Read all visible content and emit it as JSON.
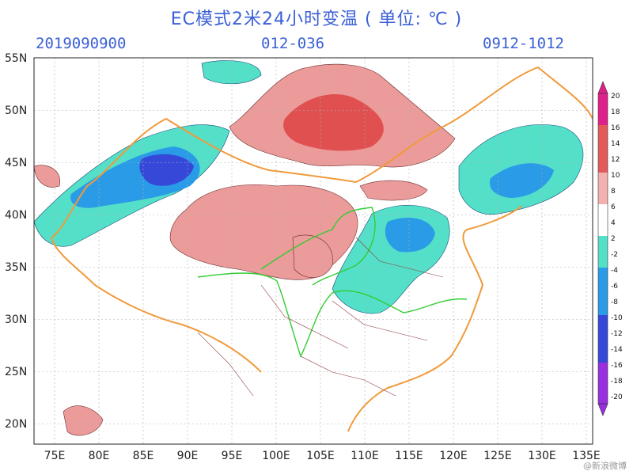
{
  "header": {
    "title": "EC模式2米24小时变温 ( 单位: ℃ )",
    "init_time": "2019090900",
    "lead": "012-036",
    "valid": "0912-1012"
  },
  "axes": {
    "lat_labels": [
      "55N",
      "50N",
      "45N",
      "40N",
      "35N",
      "30N",
      "25N",
      "20N"
    ],
    "lon_labels": [
      "75E",
      "80E",
      "85E",
      "90E",
      "95E",
      "100E",
      "105E",
      "110E",
      "115E",
      "120E",
      "125E",
      "130E",
      "135E"
    ]
  },
  "colorbar": {
    "labels": [
      "20",
      "18",
      "16",
      "14",
      "12",
      "10",
      "8",
      "6",
      "4",
      "2",
      "-2",
      "-4",
      "-6",
      "-8",
      "-10",
      "-12",
      "-14",
      "-16",
      "-18",
      "-20"
    ],
    "colors": {
      "warm_top": "#e0208a",
      "warm_mid": "#e45a5a",
      "warm_low": "#f2b0ae",
      "neutral": "#ffffff",
      "cool_low": "#54e0c8",
      "cool_mid": "#2a9be6",
      "cool_high": "#3548d8",
      "cool_top": "#9a2fe0"
    }
  },
  "colors": {
    "title": "#3b5fd6",
    "border": "#f09a3a",
    "river": "#33cc33",
    "province": "#8b3a3a"
  },
  "watermark": "@新浪微博"
}
